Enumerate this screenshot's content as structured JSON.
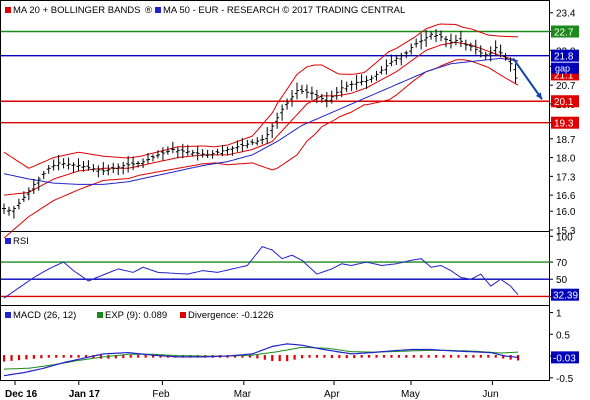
{
  "colors": {
    "ma20": "#dd0000",
    "ma50": "#2222cc",
    "boll": "#dd0000",
    "resistance_green": "#1a8a1a",
    "pivot_blue": "#0000bb",
    "support_red": "#dd0000",
    "rsi": "#2222cc",
    "macd": "#2222cc",
    "exp": "#1a8a1a",
    "div": "#dd0000",
    "arrow": "#1144aa"
  },
  "chart_data": [
    {
      "type": "line",
      "title": "MA 20 + BOLLINGER BANDS",
      "legend": [
        "MA 20 + BOLLINGER BANDS",
        "MA 50 - EUR - RESEARCH © 2017 TRADING CENTRAL"
      ],
      "ylim": [
        15.3,
        23.8
      ],
      "yticks": [
        15.3,
        16.0,
        16.6,
        17.3,
        18.0,
        18.7,
        19.3,
        20.0,
        20.7,
        21.4,
        22.0,
        22.7,
        23.4
      ],
      "xtick_labels": [
        "Dec 16",
        "Jan 17",
        "Feb",
        "Mar",
        "Apr",
        "May",
        "Jun"
      ],
      "level_lines": [
        {
          "name": "resistance",
          "value": 22.7,
          "label": "22.7",
          "color": "green"
        },
        {
          "name": "pivot",
          "value": 21.8,
          "label": "21.8",
          "color": "blue"
        },
        {
          "name": "support1",
          "value": 20.1,
          "label": "20.1",
          "color": "red"
        },
        {
          "name": "support2",
          "value": 19.3,
          "label": "19.3",
          "color": "red"
        }
      ],
      "level_labels": [
        {
          "label": "21.1",
          "color": "red",
          "value": 21.1
        }
      ],
      "gap_label": "gap",
      "price_anchors": {
        "x": [
          0,
          3,
          7,
          12,
          18,
          22,
          30,
          40,
          48,
          55,
          62,
          68,
          75,
          82,
          90,
          98,
          105,
          112,
          118,
          124,
          130,
          136,
          142,
          147,
          150,
          155,
          158,
          162,
          165,
          169,
          172,
          176,
          180,
          183,
          186,
          189,
          192,
          195,
          198,
          201,
          204,
          207
        ],
        "y": [
          16.1,
          16.0,
          16.4,
          17.0,
          17.6,
          17.8,
          17.7,
          17.5,
          17.7,
          17.8,
          18.1,
          18.3,
          18.2,
          18.1,
          18.3,
          18.5,
          18.7,
          19.8,
          20.5,
          20.4,
          20.1,
          20.6,
          20.8,
          20.9,
          21.1,
          21.5,
          21.7,
          21.9,
          22.2,
          22.4,
          22.6,
          22.5,
          22.3,
          22.4,
          22.2,
          22.1,
          21.9,
          21.8,
          22.1,
          21.8,
          21.5,
          20.7
        ]
      },
      "ma20_anchors": {
        "x": [
          0,
          10,
          20,
          30,
          40,
          50,
          60,
          70,
          80,
          90,
          100,
          108,
          115,
          122,
          128,
          134,
          140,
          146,
          152,
          158,
          164,
          170,
          176,
          182,
          188,
          194,
          200,
          207
        ],
        "y": [
          16.6,
          16.7,
          17.2,
          17.5,
          17.6,
          17.6,
          17.8,
          18.0,
          18.1,
          18.1,
          18.3,
          18.6,
          19.3,
          20.0,
          20.3,
          20.3,
          20.4,
          20.6,
          20.9,
          21.2,
          21.6,
          22.0,
          22.2,
          22.3,
          22.2,
          22.0,
          21.8,
          21.6
        ]
      },
      "ma50_anchors": {
        "x": [
          0,
          10,
          20,
          30,
          40,
          50,
          60,
          70,
          80,
          90,
          100,
          110,
          120,
          130,
          140,
          150,
          160,
          170,
          180,
          190,
          200,
          207
        ],
        "y": [
          17.4,
          17.2,
          17.05,
          17.0,
          17.0,
          17.1,
          17.3,
          17.5,
          17.7,
          17.85,
          18.1,
          18.6,
          19.2,
          19.6,
          20.0,
          20.4,
          20.8,
          21.2,
          21.5,
          21.6,
          21.7,
          21.6
        ]
      },
      "band_width_anchors": {
        "x": [
          0,
          10,
          20,
          30,
          40,
          55,
          70,
          85,
          100,
          110,
          118,
          125,
          135,
          145,
          155,
          165,
          175,
          185,
          195,
          207
        ],
        "w": [
          1.6,
          0.9,
          0.8,
          0.7,
          0.45,
          0.35,
          0.4,
          0.3,
          0.5,
          1.2,
          1.5,
          1.3,
          0.8,
          0.6,
          0.9,
          0.8,
          0.8,
          0.6,
          0.6,
          0.9
        ]
      },
      "n_bars": 208
    },
    {
      "type": "line",
      "title": "RSI",
      "ylim": [
        20,
        105
      ],
      "yticks": [
        30,
        50,
        70,
        100
      ],
      "tick_labels": [
        "30",
        "50",
        "70",
        "100"
      ],
      "levels": [
        70,
        50,
        30
      ],
      "current_label": "32.39",
      "anchors": {
        "x": [
          0,
          6,
          12,
          18,
          24,
          28,
          34,
          40,
          46,
          52,
          56,
          62,
          68,
          74,
          80,
          86,
          92,
          98,
          104,
          108,
          112,
          116,
          120,
          126,
          132,
          136,
          140,
          146,
          152,
          158,
          164,
          168,
          172,
          176,
          180,
          184,
          188,
          192,
          196,
          200,
          204,
          207
        ],
        "y": [
          28,
          40,
          52,
          62,
          70,
          60,
          48,
          55,
          62,
          58,
          64,
          58,
          57,
          56,
          60,
          58,
          62,
          66,
          88,
          84,
          74,
          78,
          72,
          56,
          62,
          68,
          66,
          70,
          66,
          68,
          72,
          74,
          64,
          66,
          60,
          52,
          50,
          56,
          42,
          50,
          42,
          32
        ]
      }
    },
    {
      "type": "bar",
      "title": "MACD (26, 12)",
      "legend": [
        "MACD (26, 12)",
        "EXP (9): 0.089",
        "Divergence: -0.1226"
      ],
      "ylim": [
        -0.55,
        1.15
      ],
      "yticks": [
        -0.5,
        0,
        0.5,
        1
      ],
      "tick_labels": [
        "-0.5",
        "0",
        "0.5",
        "1"
      ],
      "current_label": "-0.03",
      "macd_anchors": {
        "x": [
          0,
          8,
          16,
          24,
          32,
          40,
          50,
          60,
          70,
          80,
          90,
          100,
          108,
          114,
          120,
          126,
          132,
          140,
          148,
          156,
          164,
          172,
          180,
          188,
          196,
          202,
          207
        ],
        "y": [
          -0.45,
          -0.38,
          -0.28,
          -0.15,
          -0.05,
          0.05,
          0.08,
          0.02,
          -0.02,
          -0.02,
          0.0,
          0.05,
          0.22,
          0.28,
          0.25,
          0.18,
          0.12,
          0.05,
          0.08,
          0.12,
          0.15,
          0.15,
          0.12,
          0.1,
          0.08,
          0.0,
          -0.03
        ]
      },
      "exp_anchors": {
        "x": [
          0,
          10,
          20,
          30,
          40,
          50,
          60,
          70,
          80,
          90,
          100,
          110,
          120,
          130,
          140,
          150,
          160,
          170,
          180,
          190,
          200,
          207
        ],
        "y": [
          -0.3,
          -0.28,
          -0.2,
          -0.1,
          -0.02,
          0.04,
          0.04,
          0.01,
          0.0,
          0.0,
          0.02,
          0.1,
          0.2,
          0.18,
          0.1,
          0.09,
          0.11,
          0.13,
          0.13,
          0.11,
          0.07,
          0.09
        ]
      }
    }
  ]
}
